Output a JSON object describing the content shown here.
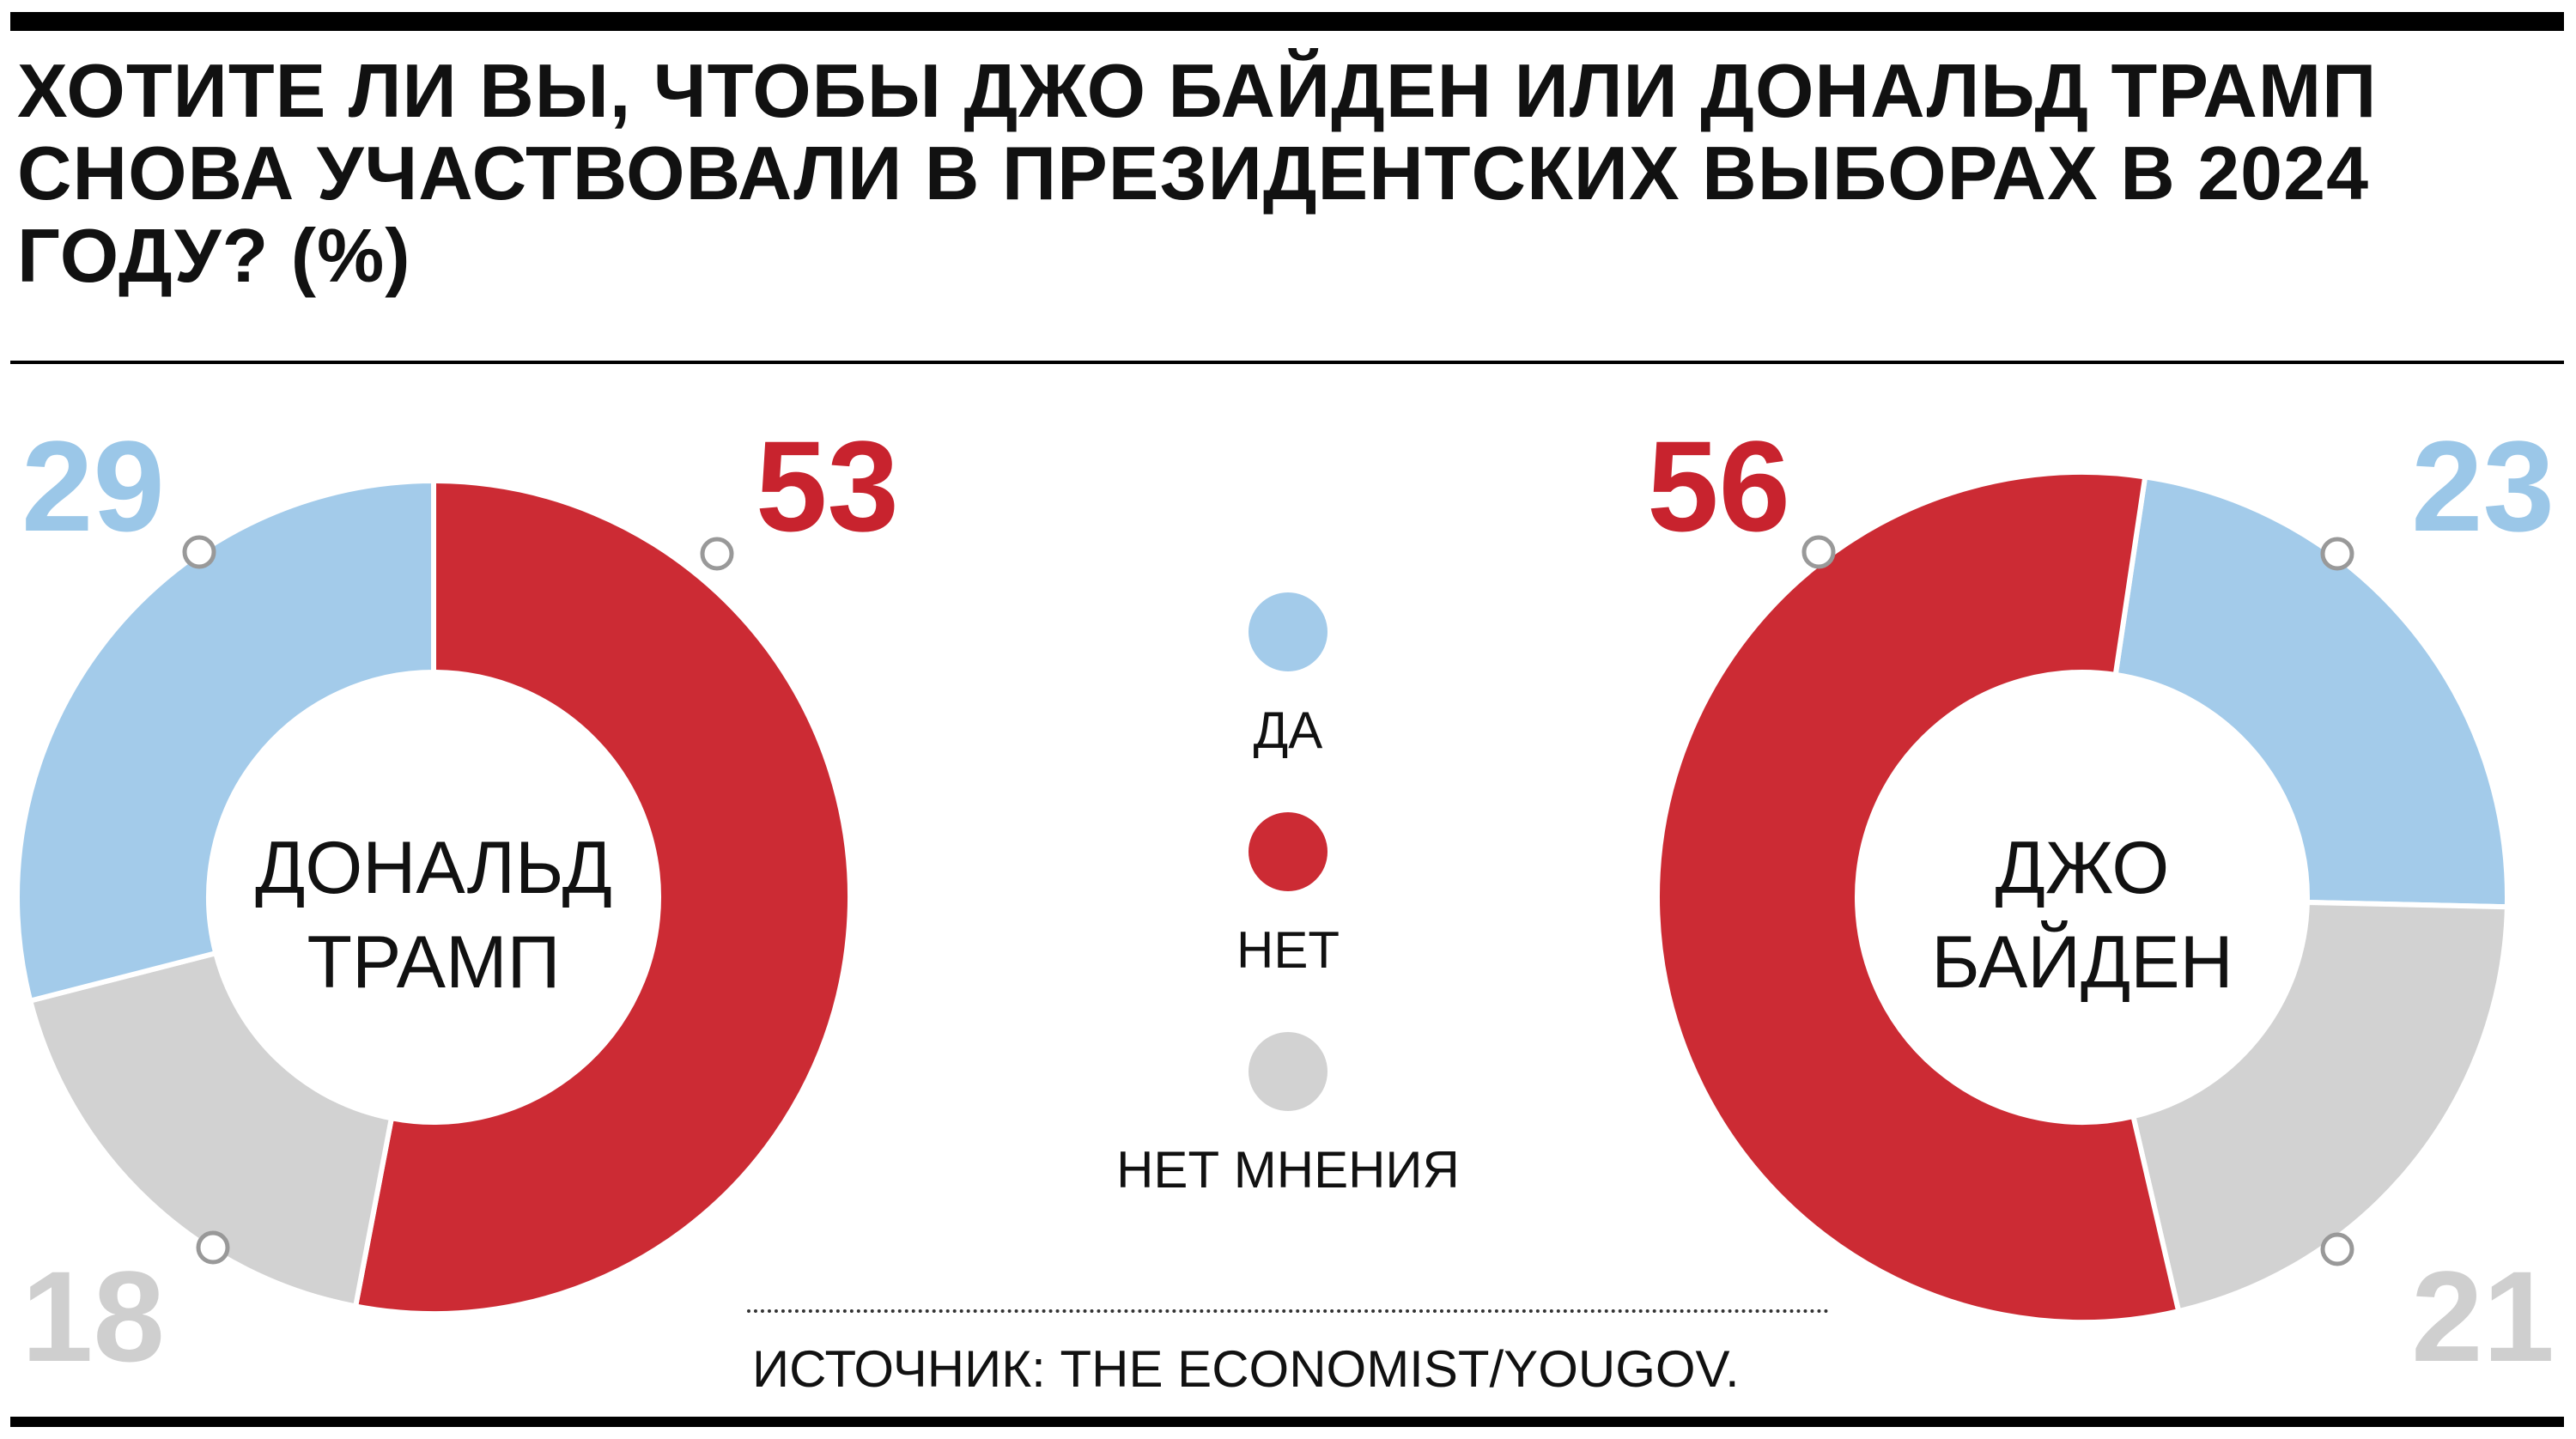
{
  "title": "ХОТИТЕ ЛИ ВЫ, ЧТОБЫ ДЖО БАЙДЕН ИЛИ ДОНАЛЬД ТРАМП СНОВА УЧАСТВОВАЛИ В ПРЕЗИДЕНТСКИХ ВЫБОРАХ В 2024 ГОДУ? (%)",
  "colors": {
    "yes": "#a3cbea",
    "no": "#cc2b34",
    "no_opinion": "#d2d2d2",
    "label_yes": "#9bc7e8",
    "label_no": "#c8232e",
    "label_no_opinion": "#cfcfcf"
  },
  "legend": [
    {
      "key": "yes",
      "label": "ДА"
    },
    {
      "key": "no",
      "label": "НЕТ"
    },
    {
      "key": "no_opinion",
      "label": "НЕТ МНЕНИЯ"
    }
  ],
  "chart_data": [
    {
      "type": "pie",
      "center_label": [
        "ДОНАЛЬД",
        "ТРАМП"
      ],
      "slices": [
        {
          "key": "no",
          "label": "НЕТ",
          "value": 53
        },
        {
          "key": "no_opinion",
          "label": "НЕТ МНЕНИЯ",
          "value": 18
        },
        {
          "key": "yes",
          "label": "ДА",
          "value": 29
        }
      ]
    },
    {
      "type": "pie",
      "center_label": [
        "ДЖО",
        "БАЙДЕН"
      ],
      "slices": [
        {
          "key": "yes",
          "label": "ДА",
          "value": 23
        },
        {
          "key": "no_opinion",
          "label": "НЕТ МНЕНИЯ",
          "value": 21
        },
        {
          "key": "no",
          "label": "НЕТ",
          "value": 56
        }
      ]
    }
  ],
  "source": "ИСТОЧНИК: THE ECONOMIST/YOUGOV."
}
